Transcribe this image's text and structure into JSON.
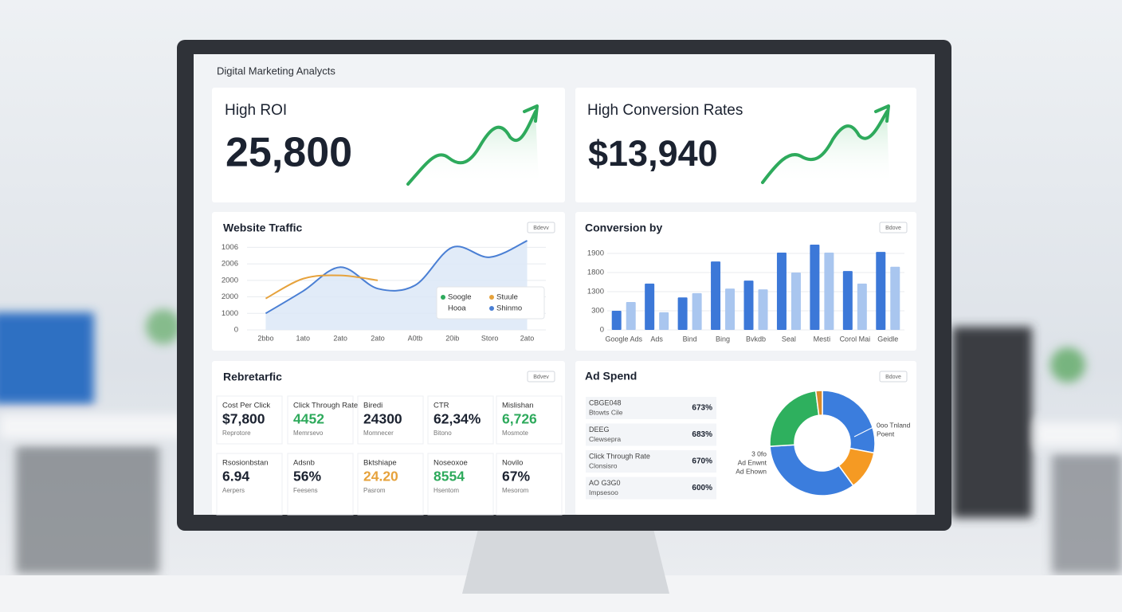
{
  "header": {
    "title": "Digital Marketing Analycts"
  },
  "kpis": [
    {
      "label": "High ROI",
      "value": "25,800"
    },
    {
      "label": "High Conversion Rates",
      "value": "$13,940"
    }
  ],
  "traffic": {
    "title": "Website Traffic",
    "button": "Bdevv",
    "ylim": [
      0,
      5500
    ],
    "yticks": [
      0,
      1000,
      2000,
      {
        "value": 3000,
        "label": "2000"
      },
      {
        "value": 4000,
        "label": "2006"
      },
      {
        "value": 5000,
        "label": "1006"
      }
    ],
    "categories": [
      "2bbo",
      "1ato",
      "2ato",
      "2ato",
      "A0tb",
      "20ib",
      "Storo",
      "2ato"
    ],
    "series": [
      {
        "color": "#4a7fd4",
        "values": [
          1000,
          2350,
          3800,
          2500,
          2700,
          5000,
          4400,
          5400
        ]
      },
      {
        "color": "#e6a23c",
        "values": [
          1900,
          3100,
          3300,
          3000,
          null,
          null,
          null,
          null
        ]
      }
    ],
    "legend": [
      {
        "name": "Soogle",
        "color": "#2eaa5c"
      },
      {
        "name": "Stuule",
        "color": "#e6a23c"
      },
      {
        "name": "Hooa"
      },
      {
        "name": "Shinmo",
        "color": "#4a7fd4"
      }
    ]
  },
  "conversion": {
    "title": "Conversion by",
    "button": "Bdove",
    "ylim": [
      0,
      2300
    ],
    "yticks": [
      0,
      {
        "value": 500,
        "label": "300"
      },
      {
        "value": 1000,
        "label": "1300"
      },
      {
        "value": 1500,
        "label": "1800"
      },
      {
        "value": 2000,
        "label": "1900"
      }
    ],
    "categories": [
      "Google Ads",
      "Ads",
      "Bind",
      "Bing",
      "Bvkdb",
      "Seal",
      "Mesti",
      "Corol Mai",
      "Geidle"
    ],
    "series": [
      {
        "color": "#3c78d8",
        "values": [
          500,
          1210,
          850,
          1790,
          1290,
          2020,
          2230,
          1540,
          2040
        ]
      },
      {
        "color": "#a9c6ef",
        "values": [
          730,
          460,
          960,
          1080,
          1060,
          1500,
          2020,
          1210,
          1650
        ]
      }
    ]
  },
  "metrics": {
    "title": "Rebretarfic",
    "button": "Bdvev",
    "cards": [
      {
        "label": "Cost Per Click",
        "value": "$7,800",
        "note": "Reprotore",
        "color": "#1b2230"
      },
      {
        "label": "Click Through Rate",
        "value": "4452",
        "note": "Memrsevo",
        "color": "#2eaa5c"
      },
      {
        "label": "Biredi",
        "value": "24300",
        "note": "Momnecer",
        "color": "#1b2230"
      },
      {
        "label": "CTR",
        "value": "62,34%",
        "note": "Bitono",
        "color": "#1b2230"
      },
      {
        "label": "Mislishan",
        "value": "6,726",
        "note": "Mosmote",
        "color": "#2eaa5c"
      },
      {
        "label": "Rsosionbstan",
        "value": "6.94",
        "note": "Aerpers",
        "color": "#1b2230"
      },
      {
        "label": "Adsnb",
        "value": "56%",
        "note": "Feesens",
        "color": "#1b2230"
      },
      {
        "label": "Bktshiape",
        "value": "24.20",
        "note": "Pasrom",
        "color": "#e6a23c"
      },
      {
        "label": "Noseoxoe",
        "value": "8554",
        "note": "Hsentom",
        "color": "#2eaa5c"
      },
      {
        "label": "Novilo",
        "value": "67%",
        "note": "Mesorom",
        "color": "#1b2230"
      }
    ]
  },
  "ad_spend": {
    "title": "Ad Spend",
    "button": "Bdove",
    "rows": [
      [
        "CBGE048",
        "Btowts Cile",
        "673%"
      ],
      [
        "DEEG",
        "Clewsepra",
        "683%"
      ],
      [
        "Click Through Rate",
        "Clonsisro",
        "670%"
      ],
      [
        "AO G3G0",
        "Impsesoo",
        "600%"
      ]
    ],
    "donut": {
      "values": [
        28,
        12,
        34,
        24,
        2
      ],
      "colors": [
        "#3b7ddd",
        "#f59a23",
        "#3b7ddd",
        "#2eb05e",
        "#d98a2b"
      ]
    },
    "right_label": [
      "0oo Tnland",
      "Poent"
    ],
    "left_label": [
      "3 0fo",
      "Ad Enwnt",
      "Ad Ehown"
    ]
  }
}
